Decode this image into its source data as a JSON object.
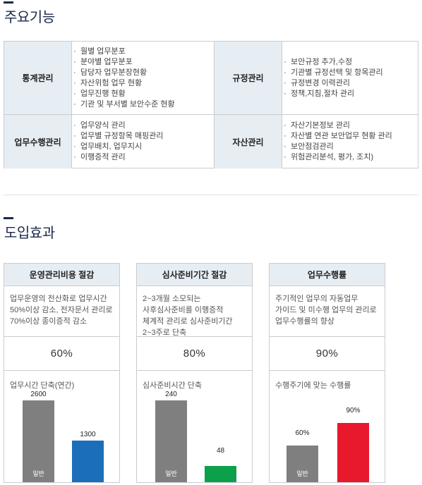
{
  "section1": {
    "title": "주요기능"
  },
  "features": [
    {
      "label": "통계관리",
      "items": [
        "월별 업무분포",
        "분야별 업무분포",
        "담당자 업무분장현황",
        "자산위험 업무 현황",
        "업무진행 현황",
        "기관 및 부서별 보안수준 현황"
      ]
    },
    {
      "label": "규정관리",
      "items": [
        "보안규정 추가,수정",
        "기관별 규정선택 및 항목관리",
        "규정변경 이력관리",
        "정책,지침,절차 관리"
      ]
    },
    {
      "label": "업무수행관리",
      "items": [
        "업무양식 관리",
        "업무별 규정항목 매핑관리",
        "업무배치, 업무지시",
        "이행증적 관리"
      ]
    },
    {
      "label": "자산관리",
      "items": [
        "자산기본정보 관리",
        "자산별 연관 보안업무 현황 관리",
        "보안점검관리",
        "위험관리분석, 평가, 조치)"
      ]
    }
  ],
  "section2": {
    "title": "도입효과"
  },
  "cards": [
    {
      "title": "운영관리비용 절감",
      "desc": "업무운영의 전산화로 업무시간 50%이상 감소, 전자문서 관리로 70%이상 종이증적 감소",
      "percent": "60%",
      "chart_label": "업무시간 단축(연간)",
      "bars": [
        {
          "value": "2600",
          "caption": "일반",
          "color": "#7f7f7f"
        },
        {
          "value": "1300",
          "caption": "",
          "color": "#1b6fba"
        }
      ]
    },
    {
      "title": "심사준비기간 절감",
      "desc": "2~3개월 소모되는 사후심사준비를 이행증적 체계적 관리로 심사준비기간 2~3주로 단축",
      "percent": "80%",
      "chart_label": "심사준비시간 단축",
      "bars": [
        {
          "value": "240",
          "caption": "일반",
          "color": "#7f7f7f"
        },
        {
          "value": "48",
          "caption": "",
          "color": "#0da04a"
        }
      ]
    },
    {
      "title": "업무수행률",
      "desc": "주기적인 업무의 자동업무 가이드 및 미수행 업무의 관리로 업무수행률의 향상",
      "percent": "90%",
      "chart_label": "수행주기에 맞는 수행률",
      "bars": [
        {
          "value": "60%",
          "caption": "일반",
          "color": "#7f7f7f"
        },
        {
          "value": "90%",
          "caption": "",
          "color": "#e8182d"
        }
      ]
    }
  ]
}
